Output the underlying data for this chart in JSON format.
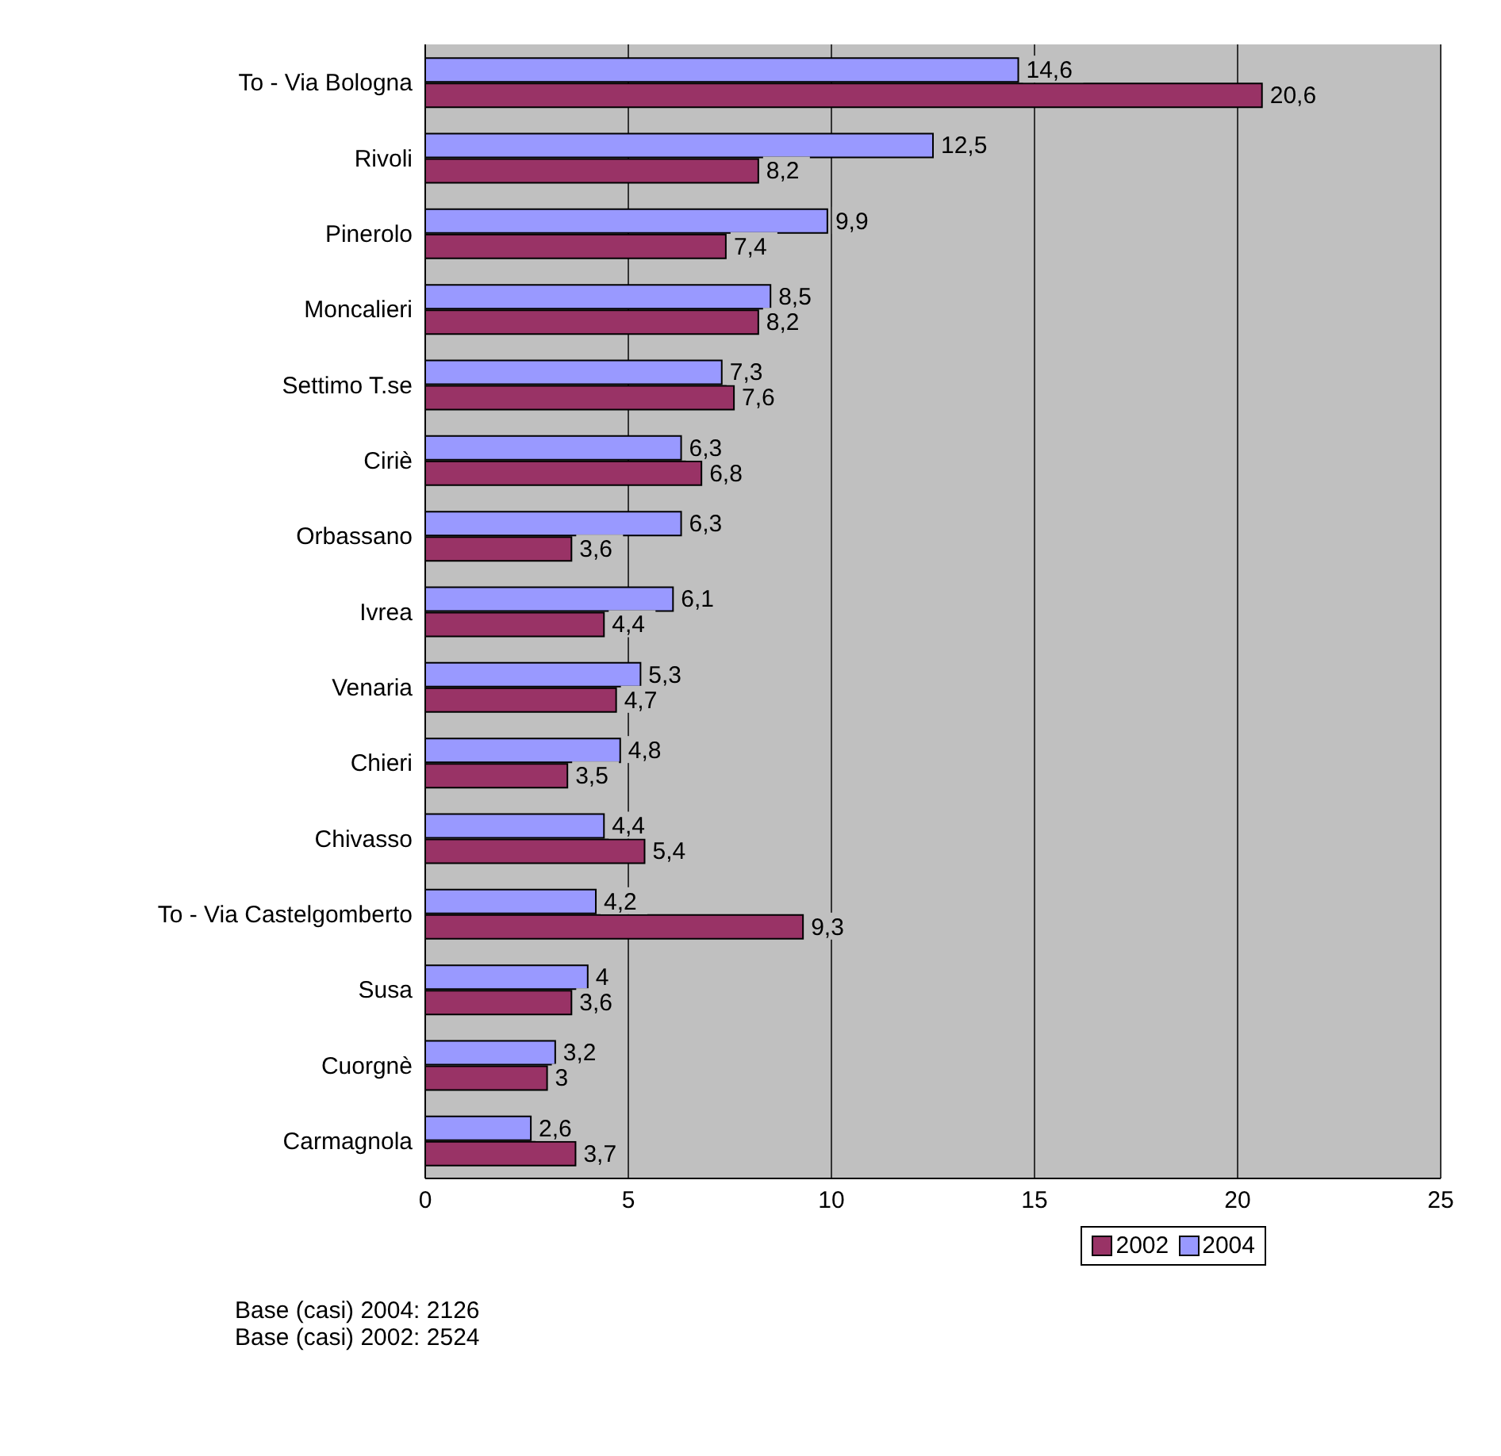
{
  "chart_data": {
    "type": "bar",
    "orientation": "horizontal",
    "categories": [
      "To - Via Bologna",
      "Rivoli",
      "Pinerolo",
      "Moncalieri",
      "Settimo T.se",
      "Ciriè",
      "Orbassano",
      "Ivrea",
      "Venaria",
      "Chieri",
      "Chivasso",
      "To - Via Castelgomberto",
      "Susa",
      "Cuorgnè",
      "Carmagnola"
    ],
    "series": [
      {
        "name": "2002",
        "color": "#993366",
        "values": [
          20.6,
          8.2,
          7.4,
          8.2,
          7.6,
          6.8,
          3.6,
          4.4,
          4.7,
          3.5,
          5.4,
          9.3,
          3.6,
          3,
          3.7
        ],
        "value_labels": [
          "20,6",
          "8,2",
          "7,4",
          "8,2",
          "7,6",
          "6,8",
          "3,6",
          "4,4",
          "4,7",
          "3,5",
          "5,4",
          "9,3",
          "3,6",
          "3",
          "3,7"
        ]
      },
      {
        "name": "2004",
        "color": "#9999ff",
        "values": [
          14.6,
          12.5,
          9.9,
          8.5,
          7.3,
          6.3,
          6.3,
          6.1,
          5.3,
          4.8,
          4.4,
          4.2,
          4,
          3.2,
          2.6
        ],
        "value_labels": [
          "14,6",
          "12,5",
          "9,9",
          "8,5",
          "7,3",
          "6,3",
          "6,3",
          "6,1",
          "5,3",
          "4,8",
          "4,4",
          "4,2",
          "4",
          "3,2",
          "2,6"
        ]
      }
    ],
    "xlim": [
      0,
      25
    ],
    "xticks": [
      0,
      5,
      10,
      15,
      20,
      25
    ],
    "grid": "x",
    "legend": "bottom right",
    "annotations": [
      "Base (casi) 2004: 2126",
      "Base (casi) 2002: 2524"
    ]
  }
}
